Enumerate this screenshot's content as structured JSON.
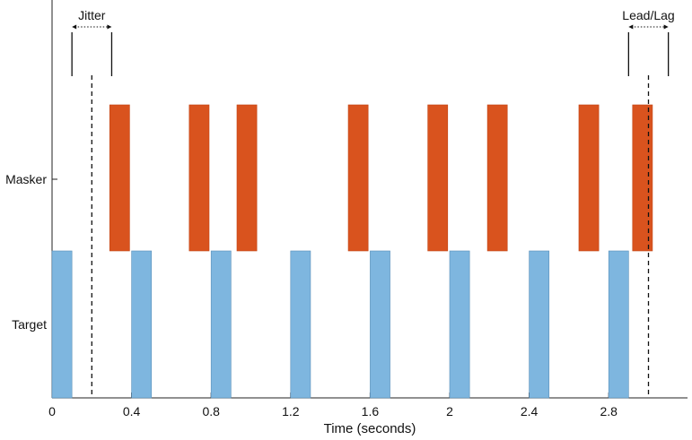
{
  "chart_data": {
    "type": "bar",
    "title": "",
    "xlabel": "Time (seconds)",
    "ylabel": "",
    "xlim": [
      0,
      3.2
    ],
    "xticks": [
      0,
      0.4,
      0.8,
      1.2,
      1.6,
      2,
      2.4,
      2.8
    ],
    "xtick_labels": [
      "0",
      "0.4",
      "0.8",
      "1.2",
      "1.6",
      "2",
      "2.4",
      "2.8"
    ],
    "rows": [
      "Masker",
      "Target"
    ],
    "series": [
      {
        "name": "Target",
        "color": "#7eb6df",
        "bar_width_s": 0.1,
        "onsets": [
          0.0,
          0.4,
          0.8,
          1.2,
          1.6,
          2.0,
          2.4,
          2.8
        ]
      },
      {
        "name": "Masker",
        "color": "#d9531e",
        "bar_width_s": 0.1,
        "onsets": [
          0.29,
          0.69,
          0.93,
          1.49,
          1.89,
          2.19,
          2.65,
          2.92
        ]
      }
    ],
    "reference_lines": [
      0.2,
      3.0
    ],
    "annotations": [
      {
        "label": "Jitter",
        "start": 0.1,
        "end": 0.3
      },
      {
        "label": "Lead/Lag",
        "start": 2.9,
        "end": 3.1
      }
    ]
  }
}
